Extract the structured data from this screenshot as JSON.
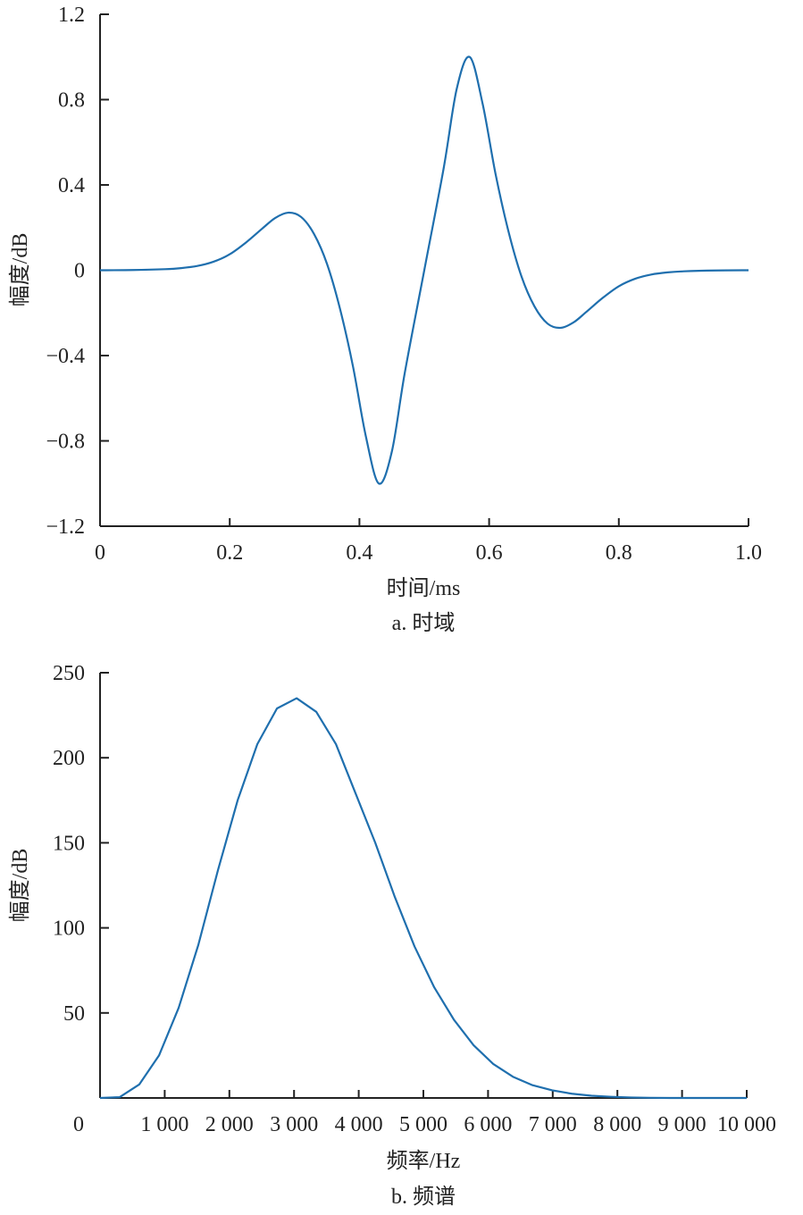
{
  "colors": {
    "line": "#1f6fae",
    "axis": "#222222"
  },
  "chart_data": [
    {
      "type": "line",
      "title": "",
      "caption": "a. 时域",
      "xlabel": "时间/ms",
      "ylabel": "幅度/dB",
      "xlim": [
        0,
        1.0
      ],
      "ylim": [
        -1.2,
        1.2
      ],
      "xticks": [
        0,
        0.2,
        0.4,
        0.6,
        0.8,
        1.0
      ],
      "xtick_labels": [
        "0",
        "0.2",
        "0.4",
        "0.6",
        "0.8",
        "1.0"
      ],
      "yticks": [
        1.2,
        0.8,
        0.4,
        0,
        -0.4,
        -0.8,
        -1.2
      ],
      "ytick_labels": [
        "1.2",
        "0.8",
        "0.4",
        "0",
        "−0.4",
        "−0.8",
        "−1.2"
      ],
      "grid": false,
      "smooth": true,
      "x": [
        0,
        0.05,
        0.1,
        0.125,
        0.15,
        0.175,
        0.2,
        0.225,
        0.25,
        0.27,
        0.29,
        0.31,
        0.33,
        0.35,
        0.37,
        0.39,
        0.41,
        0.43,
        0.45,
        0.47,
        0.5,
        0.53,
        0.55,
        0.57,
        0.59,
        0.61,
        0.63,
        0.65,
        0.67,
        0.69,
        0.71,
        0.73,
        0.75,
        0.775,
        0.8,
        0.825,
        0.85,
        0.875,
        0.9,
        0.95,
        1.0
      ],
      "y": [
        0,
        0.001,
        0.005,
        0.01,
        0.02,
        0.04,
        0.075,
        0.13,
        0.195,
        0.245,
        0.27,
        0.25,
        0.17,
        0.03,
        -0.18,
        -0.45,
        -0.78,
        -1.0,
        -0.85,
        -0.48,
        0,
        0.48,
        0.85,
        1.0,
        0.78,
        0.45,
        0.18,
        -0.03,
        -0.17,
        -0.25,
        -0.27,
        -0.245,
        -0.195,
        -0.13,
        -0.075,
        -0.04,
        -0.02,
        -0.01,
        -0.005,
        -0.001,
        0
      ]
    },
    {
      "type": "line",
      "title": "",
      "caption": "b. 频谱",
      "xlabel": "频率/Hz",
      "ylabel": "幅度/dB",
      "xlim": [
        0,
        10000
      ],
      "ylim": [
        0,
        250
      ],
      "xticks": [
        0,
        1000,
        2000,
        3000,
        4000,
        5000,
        6000,
        7000,
        8000,
        9000,
        10000
      ],
      "xtick_labels": [
        "0",
        "1 000",
        "2 000",
        "3 000",
        "4 000",
        "5 000",
        "6 000",
        "7 000",
        "8 000",
        "9 000",
        "10 000"
      ],
      "yticks": [
        250,
        200,
        150,
        100,
        50
      ],
      "ytick_labels": [
        "250",
        "200",
        "150",
        "100",
        "50"
      ],
      "grid": false,
      "smooth": false,
      "x": [
        0,
        304,
        608,
        912,
        1216,
        1520,
        1824,
        2128,
        2432,
        2736,
        3040,
        3344,
        3648,
        3952,
        4256,
        4560,
        4864,
        5168,
        5472,
        5776,
        6080,
        6384,
        6688,
        6992,
        7296,
        7600,
        7904,
        8208,
        8512,
        8816,
        9120,
        9424,
        9728,
        10000
      ],
      "y": [
        0,
        0.5,
        8,
        25,
        53,
        90,
        134,
        175,
        208,
        229,
        235,
        227,
        208,
        179,
        150,
        118,
        89,
        65,
        46,
        31,
        20,
        12.5,
        7.5,
        4.5,
        2.5,
        1.3,
        0.7,
        0.3,
        0.1,
        0,
        0,
        0,
        0,
        0
      ]
    }
  ]
}
